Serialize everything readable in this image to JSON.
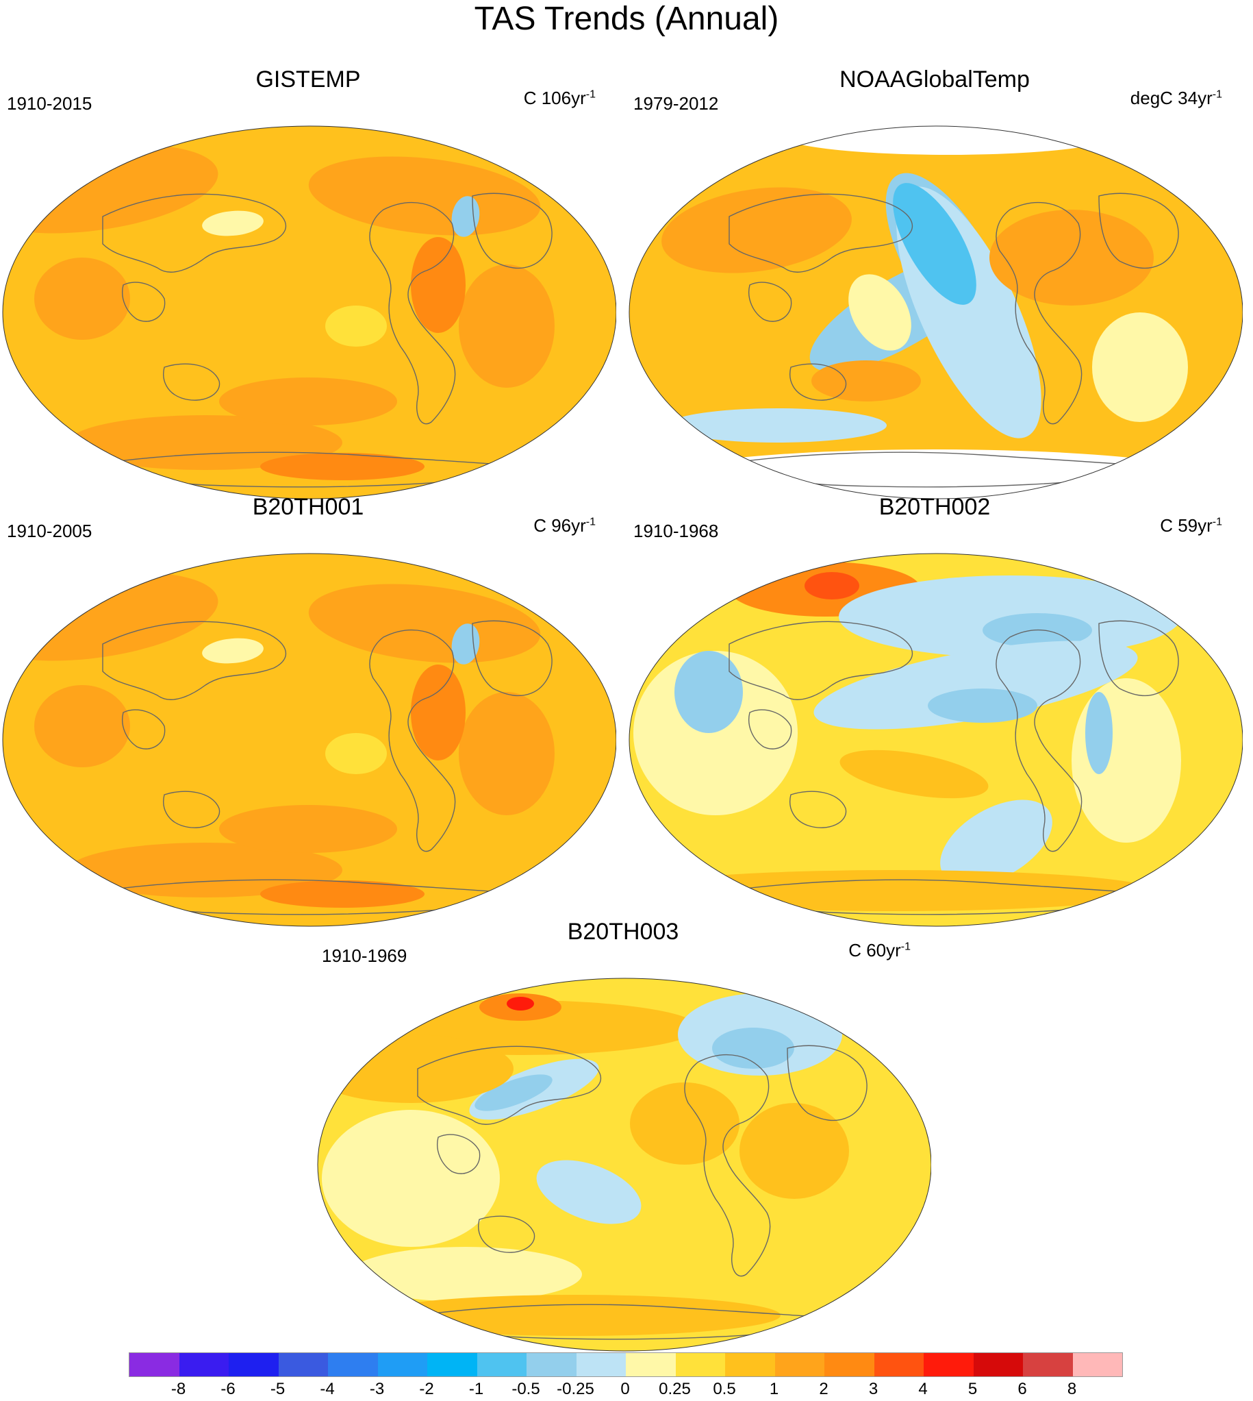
{
  "title": "TAS Trends (Annual)",
  "panels": [
    {
      "name": "GISTEMP",
      "period": "1910-2015",
      "units": "C 106yr",
      "exp": "-1",
      "style": "warm"
    },
    {
      "name": "NOAAGlobalTemp",
      "period": "1979-2012",
      "units": "degC 34yr",
      "exp": "-1",
      "style": "noaa"
    },
    {
      "name": "B20TH001",
      "period": "1910-2005",
      "units": "C 96yr",
      "exp": "-1",
      "style": "warm"
    },
    {
      "name": "B20TH002",
      "period": "1910-1968",
      "units": "C 59yr",
      "exp": "-1",
      "style": "mixed"
    },
    {
      "name": "B20TH003",
      "period": "1910-1969",
      "units": "C 60yr",
      "exp": "-1",
      "style": "mixed2"
    }
  ],
  "colorbar": {
    "colors": [
      "#8a2be2",
      "#3a1cf0",
      "#1e20f0",
      "#3a5ae0",
      "#2e7ef0",
      "#1f9df5",
      "#00b4f5",
      "#4fc3f0",
      "#93cfec",
      "#bde3f5",
      "#fff8a8",
      "#ffe13a",
      "#ffc11d",
      "#ffa41b",
      "#ff8a12",
      "#ff5310",
      "#ff1b0b",
      "#d60a0a",
      "#d74140",
      "#ffb8b8"
    ],
    "labels": [
      "-8",
      "-6",
      "-5",
      "-4",
      "-3",
      "-2",
      "-1",
      "-0.5",
      "-0.25",
      "0",
      "0.25",
      "0.5",
      "1",
      "2",
      "3",
      "4",
      "5",
      "6",
      "8"
    ]
  }
}
